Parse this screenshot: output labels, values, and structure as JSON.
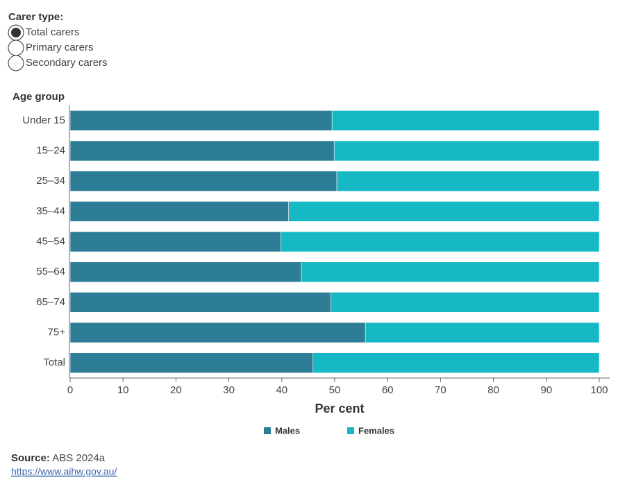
{
  "controls": {
    "label": "Carer type:",
    "options": [
      "Total carers",
      "Primary carers",
      "Secondary carers"
    ],
    "selected": 0
  },
  "chart_data": {
    "type": "hbar-stacked",
    "y_label": "Age group",
    "x_label": "Per cent",
    "categories": [
      "Under 15",
      "15–24",
      "25–34",
      "35–44",
      "45–54",
      "55–64",
      "65–74",
      "75+",
      "Total"
    ],
    "series": [
      {
        "name": "Males",
        "color": "#2e7d97",
        "values": [
          49.5,
          49.9,
          50.4,
          41.3,
          39.8,
          43.7,
          49.3,
          55.8,
          45.9
        ]
      },
      {
        "name": "Females",
        "color": "#15b8c4",
        "values": [
          50.5,
          50.1,
          49.6,
          58.7,
          60.2,
          56.3,
          50.7,
          44.2,
          54.1
        ]
      }
    ],
    "xlim": [
      0,
      100
    ],
    "xticks": [
      0,
      10,
      20,
      30,
      40,
      50,
      60,
      70,
      80,
      90,
      100
    ]
  },
  "source": {
    "label": "Source:",
    "text": "ABS 2024a",
    "link": "https://www.aihw.gov.au/"
  }
}
